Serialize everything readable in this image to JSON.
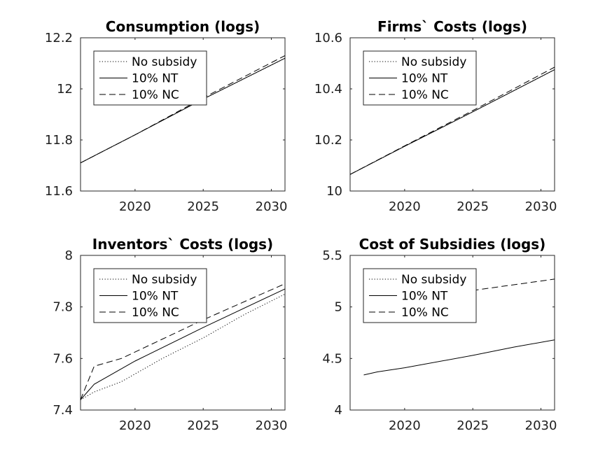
{
  "chart_data": [
    {
      "type": "line",
      "title": "Consumption (logs)",
      "xlim": [
        2016,
        2031
      ],
      "ylim": [
        11.6,
        12.2
      ],
      "xticks": [
        2020,
        2025,
        2030
      ],
      "yticks": [
        11.6,
        11.8,
        12,
        12.2
      ],
      "ytick_labels": [
        "11.6",
        "11.8",
        "12",
        "12.2"
      ],
      "grid": false,
      "legend_position": "top-left",
      "series": [
        {
          "name": "No subsidy",
          "style": "dotted",
          "x": [
            2016,
            2020,
            2025,
            2031
          ],
          "y": [
            11.71,
            11.82,
            11.96,
            12.12
          ]
        },
        {
          "name": "10% NT",
          "style": "solid",
          "x": [
            2016,
            2020,
            2025,
            2031
          ],
          "y": [
            11.71,
            11.82,
            11.96,
            12.12
          ]
        },
        {
          "name": "10% NC",
          "style": "dashed",
          "x": [
            2016,
            2020,
            2025,
            2031
          ],
          "y": [
            11.71,
            11.82,
            11.965,
            12.13
          ]
        }
      ]
    },
    {
      "type": "line",
      "title": "Firms` Costs (logs)",
      "xlim": [
        2016,
        2031
      ],
      "ylim": [
        10,
        10.6
      ],
      "xticks": [
        2020,
        2025,
        2030
      ],
      "yticks": [
        10,
        10.2,
        10.4,
        10.6
      ],
      "ytick_labels": [
        "10",
        "10.2",
        "10.4",
        "10.6"
      ],
      "grid": false,
      "legend_position": "top-left",
      "series": [
        {
          "name": "No subsidy",
          "style": "dotted",
          "x": [
            2016,
            2020,
            2025,
            2031
          ],
          "y": [
            10.065,
            10.175,
            10.31,
            10.475
          ]
        },
        {
          "name": "10% NT",
          "style": "solid",
          "x": [
            2016,
            2020,
            2025,
            2031
          ],
          "y": [
            10.065,
            10.175,
            10.31,
            10.475
          ]
        },
        {
          "name": "10% NC",
          "style": "dashed",
          "x": [
            2016,
            2020,
            2025,
            2031
          ],
          "y": [
            10.065,
            10.177,
            10.315,
            10.485
          ]
        }
      ]
    },
    {
      "type": "line",
      "title": "Inventors` Costs (logs)",
      "xlim": [
        2016,
        2031
      ],
      "ylim": [
        7.4,
        8
      ],
      "xticks": [
        2020,
        2025,
        2030
      ],
      "yticks": [
        7.4,
        7.6,
        7.8,
        8
      ],
      "ytick_labels": [
        "7.4",
        "7.6",
        "7.8",
        "8"
      ],
      "grid": false,
      "legend_position": "top-left",
      "series": [
        {
          "name": "No subsidy",
          "style": "dotted",
          "x": [
            2016,
            2017,
            2019,
            2022,
            2025,
            2028,
            2031
          ],
          "y": [
            7.44,
            7.47,
            7.51,
            7.6,
            7.68,
            7.77,
            7.85
          ]
        },
        {
          "name": "10% NT",
          "style": "solid",
          "x": [
            2016,
            2017,
            2020,
            2025,
            2031
          ],
          "y": [
            7.44,
            7.5,
            7.59,
            7.72,
            7.87
          ]
        },
        {
          "name": "10% NC",
          "style": "dashed",
          "x": [
            2016,
            2017,
            2019,
            2025,
            2031
          ],
          "y": [
            7.44,
            7.57,
            7.6,
            7.75,
            7.89
          ]
        }
      ]
    },
    {
      "type": "line",
      "title": "Cost of Subsidies (logs)",
      "xlim": [
        2016,
        2031
      ],
      "ylim": [
        4,
        5.5
      ],
      "xticks": [
        2020,
        2025,
        2030
      ],
      "yticks": [
        4,
        4.5,
        5,
        5.5
      ],
      "ytick_labels": [
        "4",
        "4.5",
        "5",
        "5.5"
      ],
      "grid": false,
      "legend_position": "top-left",
      "series": [
        {
          "name": "No subsidy",
          "style": "dotted",
          "x": [],
          "y": []
        },
        {
          "name": "10% NT",
          "style": "solid",
          "x": [
            2017,
            2018,
            2020,
            2025,
            2028,
            2031
          ],
          "y": [
            4.34,
            4.37,
            4.41,
            4.53,
            4.61,
            4.68
          ]
        },
        {
          "name": "10% NC",
          "style": "dashed",
          "x": [
            2020,
            2025,
            2031
          ],
          "y": [
            5.05,
            5.16,
            5.27
          ]
        }
      ]
    }
  ]
}
